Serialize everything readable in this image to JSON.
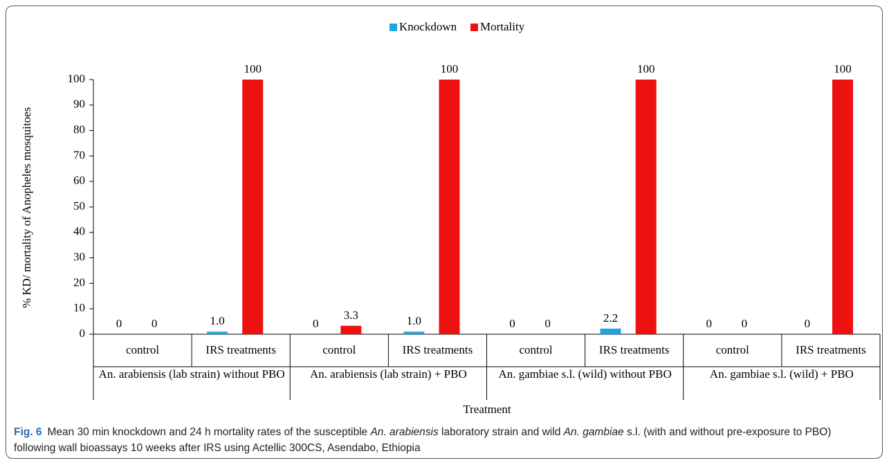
{
  "chart_data": {
    "type": "bar",
    "x_label": "Treatment",
    "y_label": "% KD/ mortality of Anopheles mosquitoes",
    "categories": [
      "control",
      "IRS treatments",
      "control",
      "IRS treatments",
      "control",
      "IRS treatments",
      "control",
      "IRS treatments"
    ],
    "groups": [
      "An. arabiensis (lab strain) without PBO",
      "An. arabiensis (lab strain) + PBO",
      "An. gambiae s.l. (wild) without PBO",
      "An. gambiae s.l. (wild) + PBO"
    ],
    "series": [
      {
        "name": "Knockdown",
        "color": "#1ea5e0",
        "values": [
          0,
          1,
          0,
          1,
          0,
          2.2,
          0,
          0
        ],
        "value_labels": [
          "0",
          "1.0",
          "0",
          "1.0",
          "0",
          "2.2",
          "0",
          "0"
        ]
      },
      {
        "name": "Mortality",
        "color": "#ee1111",
        "values": [
          0,
          100,
          3.3,
          100,
          0,
          100,
          0,
          100
        ],
        "value_labels": [
          "0",
          "100",
          "3.3",
          "100",
          "0",
          "100",
          "0",
          "100"
        ]
      }
    ],
    "ylim": [
      0,
      100
    ],
    "yticks": [
      0,
      10,
      20,
      30,
      40,
      50,
      60,
      70,
      80,
      90,
      100
    ],
    "legend": "top"
  },
  "caption": {
    "label": "Fig. 6",
    "parts": [
      "Mean 30 min knockdown and 24 h mortality rates of the susceptible ",
      "An. arabiensis",
      " laboratory strain and wild ",
      "An. gambiae",
      " s.l. (with and without pre-exposure to PBO) following wall bioassays 10 weeks after IRS using Actellic 300CS, Asendabo, Ethiopia"
    ]
  }
}
